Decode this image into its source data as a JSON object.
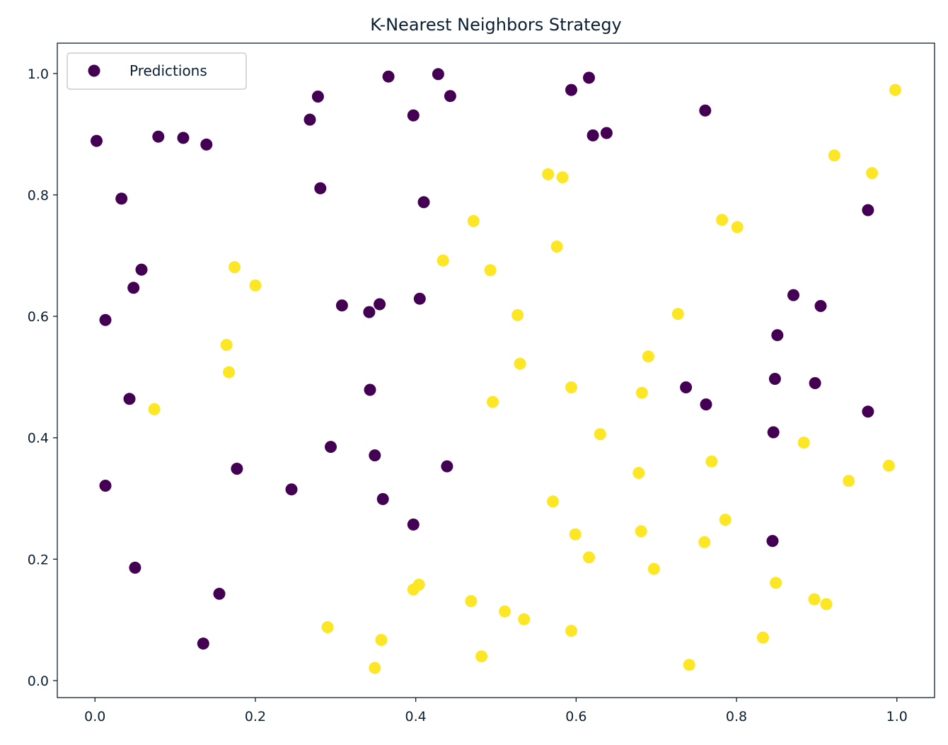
{
  "chart_data": {
    "type": "scatter",
    "title": "K-Nearest Neighbors Strategy",
    "xlabel": "",
    "ylabel": "",
    "xlim": [
      -0.047,
      1.047
    ],
    "ylim": [
      -0.028,
      1.05
    ],
    "xticks": [
      "0.0",
      "0.2",
      "0.4",
      "0.6",
      "0.8",
      "1.0"
    ],
    "yticks": [
      "0.0",
      "0.2",
      "0.4",
      "0.6",
      "0.8",
      "1.0"
    ],
    "grid": false,
    "legend": {
      "position": "top-left",
      "entries": [
        "Predictions"
      ]
    },
    "colors": {
      "class0": "#440154",
      "class1": "#fde725",
      "text": "#0b1f33"
    },
    "series": [
      {
        "name": "Predictions",
        "class_colors": [
          "#440154",
          "#fde725"
        ],
        "points": [
          [
            0.002,
            0.889,
            0
          ],
          [
            0.033,
            0.794,
            0
          ],
          [
            0.079,
            0.896,
            0
          ],
          [
            0.11,
            0.894,
            0
          ],
          [
            0.139,
            0.883,
            0
          ],
          [
            0.268,
            0.924,
            0
          ],
          [
            0.278,
            0.962,
            0
          ],
          [
            0.281,
            0.811,
            0
          ],
          [
            0.366,
            0.995,
            0
          ],
          [
            0.397,
            0.931,
            0
          ],
          [
            0.428,
            0.999,
            0
          ],
          [
            0.443,
            0.963,
            0
          ],
          [
            0.41,
            0.788,
            0
          ],
          [
            0.594,
            0.973,
            0
          ],
          [
            0.616,
            0.993,
            0
          ],
          [
            0.621,
            0.898,
            0
          ],
          [
            0.638,
            0.902,
            0
          ],
          [
            0.761,
            0.939,
            0
          ],
          [
            0.964,
            0.775,
            0
          ],
          [
            0.058,
            0.677,
            0
          ],
          [
            0.048,
            0.647,
            0
          ],
          [
            0.013,
            0.594,
            0
          ],
          [
            0.308,
            0.618,
            0
          ],
          [
            0.342,
            0.607,
            0
          ],
          [
            0.355,
            0.62,
            0
          ],
          [
            0.405,
            0.629,
            0
          ],
          [
            0.871,
            0.635,
            0
          ],
          [
            0.905,
            0.617,
            0
          ],
          [
            0.851,
            0.569,
            0
          ],
          [
            0.043,
            0.464,
            0
          ],
          [
            0.343,
            0.479,
            0
          ],
          [
            0.737,
            0.483,
            0
          ],
          [
            0.848,
            0.497,
            0
          ],
          [
            0.898,
            0.49,
            0
          ],
          [
            0.762,
            0.455,
            0
          ],
          [
            0.964,
            0.443,
            0
          ],
          [
            0.846,
            0.409,
            0
          ],
          [
            0.294,
            0.385,
            0
          ],
          [
            0.349,
            0.371,
            0
          ],
          [
            0.439,
            0.353,
            0
          ],
          [
            0.177,
            0.349,
            0
          ],
          [
            0.013,
            0.321,
            0
          ],
          [
            0.245,
            0.315,
            0
          ],
          [
            0.359,
            0.299,
            0
          ],
          [
            0.397,
            0.257,
            0
          ],
          [
            0.845,
            0.23,
            0
          ],
          [
            0.05,
            0.186,
            0
          ],
          [
            0.155,
            0.143,
            0
          ],
          [
            0.135,
            0.061,
            0
          ],
          [
            0.998,
            0.973,
            1
          ],
          [
            0.922,
            0.865,
            1
          ],
          [
            0.969,
            0.836,
            1
          ],
          [
            0.565,
            0.834,
            1
          ],
          [
            0.583,
            0.829,
            1
          ],
          [
            0.782,
            0.759,
            1
          ],
          [
            0.801,
            0.747,
            1
          ],
          [
            0.472,
            0.757,
            1
          ],
          [
            0.576,
            0.715,
            1
          ],
          [
            0.434,
            0.692,
            1
          ],
          [
            0.493,
            0.676,
            1
          ],
          [
            0.174,
            0.681,
            1
          ],
          [
            0.2,
            0.651,
            1
          ],
          [
            0.527,
            0.602,
            1
          ],
          [
            0.727,
            0.604,
            1
          ],
          [
            0.164,
            0.553,
            1
          ],
          [
            0.167,
            0.508,
            1
          ],
          [
            0.69,
            0.534,
            1
          ],
          [
            0.53,
            0.522,
            1
          ],
          [
            0.594,
            0.483,
            1
          ],
          [
            0.682,
            0.474,
            1
          ],
          [
            0.496,
            0.459,
            1
          ],
          [
            0.074,
            0.447,
            1
          ],
          [
            0.63,
            0.406,
            1
          ],
          [
            0.884,
            0.392,
            1
          ],
          [
            0.769,
            0.361,
            1
          ],
          [
            0.99,
            0.354,
            1
          ],
          [
            0.678,
            0.342,
            1
          ],
          [
            0.94,
            0.329,
            1
          ],
          [
            0.571,
            0.295,
            1
          ],
          [
            0.786,
            0.265,
            1
          ],
          [
            0.681,
            0.246,
            1
          ],
          [
            0.599,
            0.241,
            1
          ],
          [
            0.76,
            0.228,
            1
          ],
          [
            0.616,
            0.203,
            1
          ],
          [
            0.697,
            0.184,
            1
          ],
          [
            0.849,
            0.161,
            1
          ],
          [
            0.404,
            0.158,
            1
          ],
          [
            0.397,
            0.15,
            1
          ],
          [
            0.897,
            0.134,
            1
          ],
          [
            0.912,
            0.126,
            1
          ],
          [
            0.469,
            0.131,
            1
          ],
          [
            0.511,
            0.114,
            1
          ],
          [
            0.535,
            0.101,
            1
          ],
          [
            0.29,
            0.088,
            1
          ],
          [
            0.594,
            0.082,
            1
          ],
          [
            0.833,
            0.071,
            1
          ],
          [
            0.357,
            0.067,
            1
          ],
          [
            0.482,
            0.04,
            1
          ],
          [
            0.741,
            0.026,
            1
          ],
          [
            0.349,
            0.021,
            1
          ]
        ]
      }
    ]
  }
}
